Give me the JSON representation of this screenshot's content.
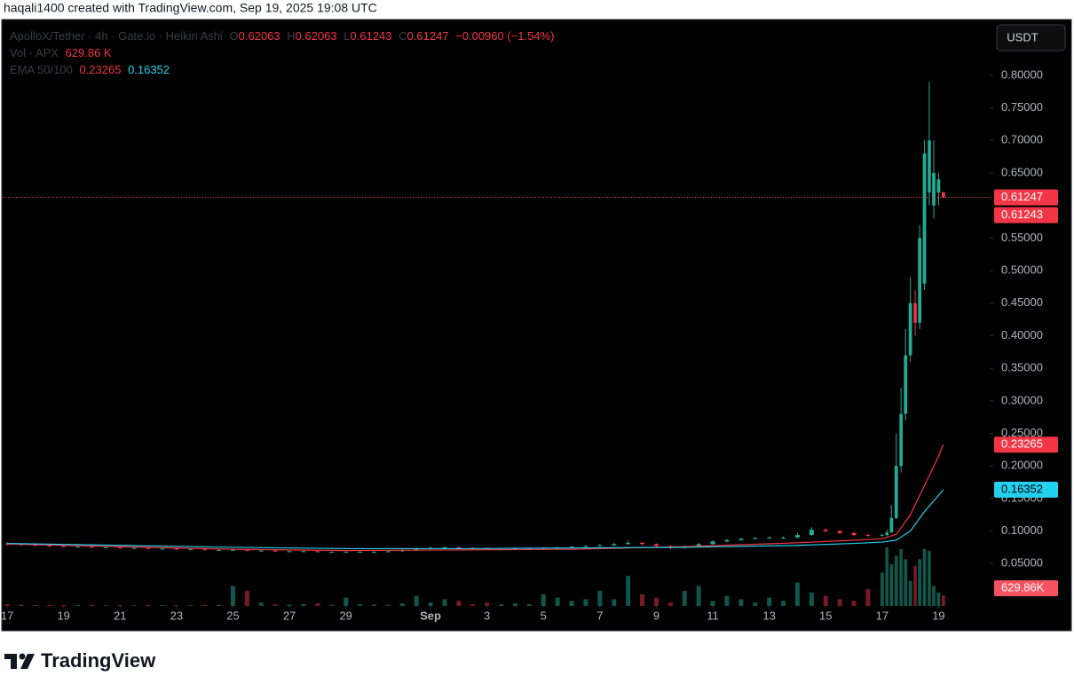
{
  "header": {
    "text": "haqali1400 created with TradingView.com, Sep 19, 2025 19:08 UTC"
  },
  "chart_data": {
    "type": "candlestick",
    "symbol": "ApolloX/Tether · 4h · Gate.io · Heikin Ashi",
    "ohlc_letters": [
      "O",
      "H",
      "L",
      "C"
    ],
    "change": "−0.00960 (−1.54%)",
    "volume_name": "Vol · APX",
    "volume_legend_label": "629.86 K",
    "volume_axis_label": "629.86K",
    "ema_name": "EMA 50/100",
    "currency": "USDT",
    "up_color": "#22ab94",
    "down_color": "#f23645",
    "x": [
      0,
      0.5,
      1,
      1.5,
      2,
      2.5,
      3,
      3.5,
      4,
      4.5,
      5,
      5.5,
      6,
      6.5,
      7,
      7.5,
      8,
      8.5,
      9,
      9.5,
      10,
      10.5,
      11,
      11.5,
      12,
      12.5,
      13,
      13.5,
      14,
      14.5,
      15,
      15.5,
      16,
      16.5,
      17,
      17.5,
      18,
      18.5,
      19,
      19.5,
      20,
      20.5,
      21,
      21.5,
      22,
      22.5,
      23,
      23.5,
      24,
      24.5,
      25,
      25.5,
      26,
      26.5,
      27,
      27.5,
      28,
      28.5,
      29,
      29.5,
      30,
      30.5,
      31,
      31.17,
      31.33,
      31.5,
      31.67,
      31.83,
      32,
      32.17,
      32.33,
      32.5,
      32.67,
      32.83,
      33,
      33.17
    ],
    "open": [
      0.081,
      0.08,
      0.079,
      0.078,
      0.077,
      0.076,
      0.076,
      0.075,
      0.075,
      0.074,
      0.074,
      0.073,
      0.073,
      0.072,
      0.072,
      0.071,
      0.071,
      0.071,
      0.07,
      0.07,
      0.069,
      0.069,
      0.069,
      0.068,
      0.068,
      0.068,
      0.068,
      0.068,
      0.069,
      0.071,
      0.073,
      0.074,
      0.075,
      0.074,
      0.073,
      0.072,
      0.072,
      0.073,
      0.073,
      0.074,
      0.075,
      0.076,
      0.077,
      0.078,
      0.08,
      0.082,
      0.08,
      0.077,
      0.074,
      0.076,
      0.08,
      0.084,
      0.086,
      0.088,
      0.089,
      0.09,
      0.09,
      0.094,
      0.102,
      0.1,
      0.097,
      0.094,
      0.093,
      0.094,
      0.098,
      0.12,
      0.2,
      0.28,
      0.37,
      0.45,
      0.42,
      0.48,
      0.62,
      0.6,
      0.62,
      0.62063
    ],
    "high": [
      0.083,
      0.081,
      0.08,
      0.079,
      0.078,
      0.077,
      0.077,
      0.076,
      0.076,
      0.075,
      0.075,
      0.074,
      0.074,
      0.073,
      0.073,
      0.072,
      0.072,
      0.072,
      0.071,
      0.071,
      0.07,
      0.07,
      0.07,
      0.069,
      0.069,
      0.069,
      0.069,
      0.07,
      0.072,
      0.075,
      0.076,
      0.076,
      0.076,
      0.075,
      0.074,
      0.073,
      0.074,
      0.074,
      0.075,
      0.076,
      0.077,
      0.078,
      0.08,
      0.082,
      0.085,
      0.083,
      0.081,
      0.078,
      0.078,
      0.082,
      0.086,
      0.088,
      0.09,
      0.091,
      0.092,
      0.092,
      0.097,
      0.106,
      0.104,
      0.101,
      0.098,
      0.096,
      0.096,
      0.102,
      0.14,
      0.25,
      0.32,
      0.41,
      0.49,
      0.47,
      0.57,
      0.7,
      0.79,
      0.7,
      0.65,
      0.62063
    ],
    "low": [
      0.078,
      0.077,
      0.076,
      0.075,
      0.075,
      0.075,
      0.074,
      0.074,
      0.073,
      0.073,
      0.072,
      0.072,
      0.071,
      0.071,
      0.07,
      0.07,
      0.07,
      0.069,
      0.069,
      0.068,
      0.068,
      0.068,
      0.067,
      0.067,
      0.067,
      0.067,
      0.067,
      0.067,
      0.068,
      0.07,
      0.072,
      0.073,
      0.073,
      0.072,
      0.071,
      0.071,
      0.071,
      0.072,
      0.072,
      0.073,
      0.074,
      0.075,
      0.076,
      0.077,
      0.079,
      0.078,
      0.075,
      0.072,
      0.073,
      0.075,
      0.079,
      0.083,
      0.085,
      0.087,
      0.088,
      0.088,
      0.089,
      0.093,
      0.098,
      0.095,
      0.092,
      0.091,
      0.091,
      0.092,
      0.097,
      0.118,
      0.19,
      0.27,
      0.36,
      0.4,
      0.41,
      0.47,
      0.6,
      0.58,
      0.6,
      0.61243
    ],
    "close": [
      0.08,
      0.079,
      0.078,
      0.077,
      0.076,
      0.076,
      0.075,
      0.075,
      0.074,
      0.074,
      0.073,
      0.073,
      0.072,
      0.072,
      0.071,
      0.071,
      0.071,
      0.07,
      0.07,
      0.069,
      0.069,
      0.069,
      0.068,
      0.068,
      0.068,
      0.068,
      0.068,
      0.069,
      0.071,
      0.073,
      0.074,
      0.075,
      0.074,
      0.073,
      0.072,
      0.072,
      0.073,
      0.073,
      0.074,
      0.075,
      0.076,
      0.077,
      0.078,
      0.08,
      0.082,
      0.08,
      0.077,
      0.074,
      0.076,
      0.08,
      0.084,
      0.086,
      0.088,
      0.089,
      0.09,
      0.09,
      0.094,
      0.102,
      0.1,
      0.097,
      0.094,
      0.093,
      0.094,
      0.098,
      0.12,
      0.2,
      0.28,
      0.37,
      0.45,
      0.42,
      0.55,
      0.68,
      0.7,
      0.65,
      0.64,
      0.61247
    ],
    "volume": [
      100000,
      80000,
      60000,
      60000,
      50000,
      50000,
      60000,
      40000,
      50000,
      40000,
      60000,
      50000,
      40000,
      40000,
      60000,
      60000,
      1200000,
      900000,
      200000,
      100000,
      80000,
      100000,
      150000,
      60000,
      500000,
      100000,
      80000,
      60000,
      150000,
      600000,
      200000,
      400000,
      300000,
      100000,
      200000,
      100000,
      150000,
      100000,
      700000,
      500000,
      300000,
      400000,
      900000,
      400000,
      1800000,
      700000,
      500000,
      200000,
      900000,
      1200000,
      300000,
      600000,
      400000,
      200000,
      500000,
      300000,
      1400000,
      800000,
      600000,
      400000,
      300000,
      1000000,
      2000000,
      3500000,
      2500000,
      3000000,
      3400000,
      2800000,
      1500000,
      2400000,
      2800000,
      3400000,
      3300000,
      1200000,
      800000,
      629860
    ],
    "volume_lim": [
      0,
      35000000
    ],
    "ema": [
      {
        "color": "#f23645",
        "x": [
          0,
          4,
          8,
          12,
          16,
          20,
          24,
          28,
          30,
          31,
          31.5,
          32,
          32.5,
          33,
          33.17
        ],
        "values": [
          0.08,
          0.076,
          0.072,
          0.07,
          0.071,
          0.072,
          0.076,
          0.082,
          0.086,
          0.088,
          0.095,
          0.125,
          0.17,
          0.215,
          0.23265
        ]
      },
      {
        "color": "#22d1ee",
        "x": [
          0,
          4,
          8,
          12,
          16,
          20,
          24,
          28,
          30,
          31,
          31.5,
          32,
          32.5,
          33,
          33.17
        ],
        "values": [
          0.081,
          0.078,
          0.075,
          0.073,
          0.073,
          0.074,
          0.075,
          0.078,
          0.081,
          0.083,
          0.086,
          0.1,
          0.13,
          0.155,
          0.16352
        ]
      }
    ],
    "xlim": [
      -0.16,
      34.81
    ],
    "ylim": [
      -0.015,
      0.883
    ],
    "grid": false,
    "xticks": [
      {
        "value": 0,
        "label": "17"
      },
      {
        "value": 2,
        "label": "19"
      },
      {
        "value": 4,
        "label": "21"
      },
      {
        "value": 6,
        "label": "23"
      },
      {
        "value": 8,
        "label": "25"
      },
      {
        "value": 10,
        "label": "27"
      },
      {
        "value": 12,
        "label": "29"
      },
      {
        "value": 15,
        "label": "Sep"
      },
      {
        "value": 17,
        "label": "3"
      },
      {
        "value": 19,
        "label": "5"
      },
      {
        "value": 21,
        "label": "7"
      },
      {
        "value": 23,
        "label": "9"
      },
      {
        "value": 25,
        "label": "11"
      },
      {
        "value": 27,
        "label": "13"
      },
      {
        "value": 29,
        "label": "15"
      },
      {
        "value": 31,
        "label": "17"
      },
      {
        "value": 33,
        "label": "19"
      }
    ],
    "yticks": [
      {
        "value": 0.05,
        "label": "0.05000"
      },
      {
        "value": 0.1,
        "label": "0.10000"
      },
      {
        "value": 0.15,
        "label": "0.15000"
      },
      {
        "value": 0.2,
        "label": "0.20000"
      },
      {
        "value": 0.25,
        "label": "0.25000"
      },
      {
        "value": 0.3,
        "label": "0.30000"
      },
      {
        "value": 0.35,
        "label": "0.35000"
      },
      {
        "value": 0.4,
        "label": "0.40000"
      },
      {
        "value": 0.45,
        "label": "0.45000"
      },
      {
        "value": 0.5,
        "label": "0.50000"
      },
      {
        "value": 0.55,
        "label": "0.55000"
      },
      {
        "value": 0.65,
        "label": "0.65000"
      },
      {
        "value": 0.7,
        "label": "0.70000"
      },
      {
        "value": 0.75,
        "label": "0.75000"
      },
      {
        "value": 0.8,
        "label": "0.80000"
      }
    ]
  },
  "footer": {
    "brand": "TradingView"
  }
}
